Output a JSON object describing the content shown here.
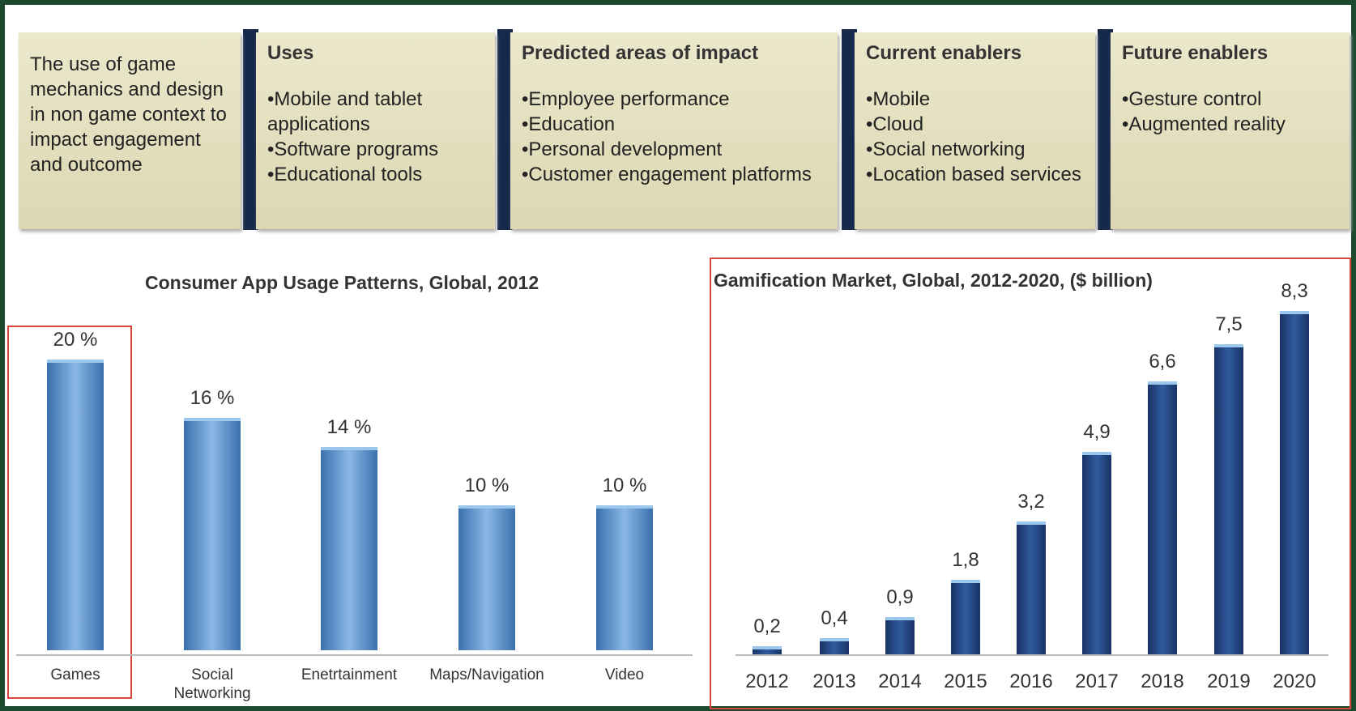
{
  "panels": [
    {
      "text": "The use of game mechanics and design in non game context to impact engagement and outcome"
    },
    {
      "title": "Uses",
      "items": [
        "•Mobile and tablet applications",
        "•Software programs",
        "•Educational tools"
      ]
    },
    {
      "title": "Predicted areas of impact",
      "items": [
        "•Employee performance",
        "•Education",
        "•Personal development",
        "•Customer engagement platforms"
      ]
    },
    {
      "title": "Current enablers",
      "items": [
        "•Mobile",
        "•Cloud",
        "•Social networking",
        "•Location based services"
      ]
    },
    {
      "title": "Future enablers",
      "items": [
        "•Gesture control",
        "•Augmented reality"
      ]
    }
  ],
  "chart_data": [
    {
      "type": "bar",
      "title": "Consumer App Usage Patterns, Global, 2012",
      "categories": [
        "Games",
        "Social Networking",
        "Enetrtainment",
        "Maps/Navigation",
        "Video"
      ],
      "values": [
        20,
        16,
        14,
        10,
        10
      ],
      "value_labels": [
        "20 %",
        "16 %",
        "14 %",
        "10 %",
        "10 %"
      ],
      "color": "#4f86c0"
    },
    {
      "type": "bar",
      "title": "Gamification Market, Global, 2012-2020, ($ billion)",
      "categories": [
        "2012",
        "2013",
        "2014",
        "2015",
        "2016",
        "2017",
        "2018",
        "2019",
        "2020"
      ],
      "values": [
        0.2,
        0.4,
        0.9,
        1.8,
        3.2,
        4.9,
        6.6,
        7.5,
        8.3
      ],
      "value_labels": [
        "0,2",
        "0,4",
        "0,9",
        "1,8",
        "3,2",
        "4,9",
        "6,6",
        "7,5",
        "8,3"
      ],
      "color": "#1f3f7a"
    }
  ]
}
